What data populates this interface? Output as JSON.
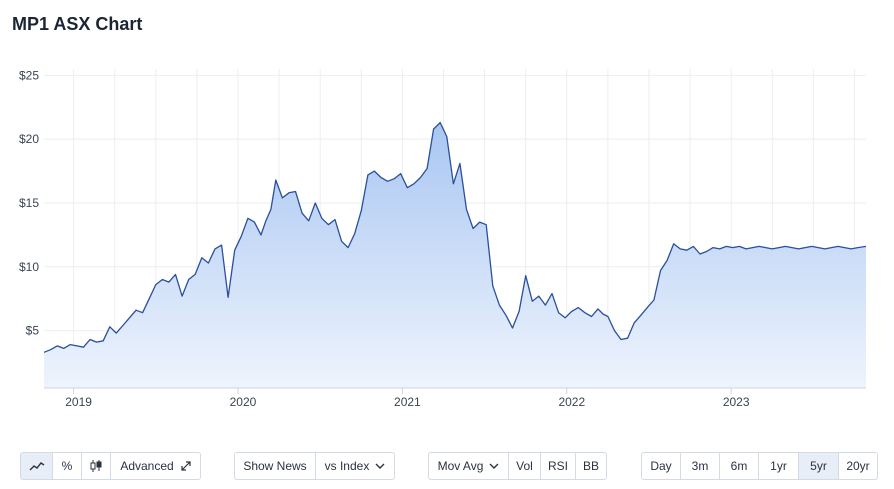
{
  "title": "MP1 ASX Chart",
  "colors": {
    "line": "#2a4f9c",
    "fill_top": "#a9c6f2",
    "fill_bottom": "#eef4fd",
    "grid": "#ebeef2",
    "axis_text": "#3b4452",
    "button_active_bg": "#e8eef7"
  },
  "chart_data": {
    "type": "area",
    "title": "",
    "xlabel": "",
    "ylabel": "",
    "y_tick_labels": [
      "$5",
      "$10",
      "$15",
      "$20",
      "$25"
    ],
    "y_ticks": [
      5,
      10,
      15,
      20,
      25
    ],
    "x_tick_labels": [
      "2019",
      "2020",
      "2021",
      "2022",
      "2023"
    ],
    "x_ticks": [
      2019.0,
      2020.0,
      2021.0,
      2022.0,
      2023.0
    ],
    "xlim": [
      2018.82,
      2023.82
    ],
    "ylim": [
      0.5,
      25.5
    ],
    "grid": true,
    "series": [
      {
        "x": [
          2018.82,
          2018.86,
          2018.9,
          2018.94,
          2018.98,
          2019.02,
          2019.06,
          2019.1,
          2019.14,
          2019.18,
          2019.22,
          2019.26,
          2019.3,
          2019.34,
          2019.38,
          2019.42,
          2019.46,
          2019.5,
          2019.54,
          2019.58,
          2019.62,
          2019.66,
          2019.7,
          2019.74,
          2019.78,
          2019.82,
          2019.86,
          2019.9,
          2019.94,
          2019.98,
          2020.02,
          2020.06,
          2020.1,
          2020.14,
          2020.17,
          2020.2,
          2020.23,
          2020.27,
          2020.31,
          2020.35,
          2020.39,
          2020.43,
          2020.47,
          2020.51,
          2020.55,
          2020.59,
          2020.63,
          2020.67,
          2020.71,
          2020.75,
          2020.79,
          2020.83,
          2020.87,
          2020.91,
          2020.95,
          2020.99,
          2021.03,
          2021.07,
          2021.11,
          2021.15,
          2021.19,
          2021.23,
          2021.27,
          2021.31,
          2021.35,
          2021.39,
          2021.43,
          2021.47,
          2021.51,
          2021.55,
          2021.59,
          2021.63,
          2021.67,
          2021.71,
          2021.75,
          2021.79,
          2021.83,
          2021.87,
          2021.91,
          2021.95,
          2021.99,
          2022.03,
          2022.07,
          2022.11,
          2022.15,
          2022.19,
          2022.22,
          2022.25,
          2022.29,
          2022.33,
          2022.37,
          2022.41,
          2022.45,
          2022.49,
          2022.53,
          2022.57,
          2022.61,
          2022.65,
          2022.69,
          2022.73,
          2022.77,
          2022.81,
          2022.85,
          2022.89,
          2022.93,
          2022.97,
          2023.01,
          2023.05,
          2023.09,
          2023.13,
          2023.17,
          2023.21,
          2023.25,
          2023.29,
          2023.33,
          2023.37,
          2023.41,
          2023.45,
          2023.49,
          2023.53,
          2023.57,
          2023.61,
          2023.65,
          2023.69,
          2023.73,
          2023.77,
          2023.82
        ],
        "y": [
          3.3,
          3.5,
          3.8,
          3.6,
          3.9,
          3.8,
          3.7,
          4.3,
          4.1,
          4.2,
          5.3,
          4.8,
          5.4,
          6.0,
          6.6,
          6.4,
          7.5,
          8.6,
          9.0,
          8.8,
          9.4,
          7.7,
          9.0,
          9.4,
          10.7,
          10.3,
          11.4,
          11.7,
          7.6,
          11.3,
          12.4,
          13.8,
          13.5,
          12.5,
          13.6,
          14.5,
          16.8,
          15.4,
          15.8,
          15.9,
          14.2,
          13.6,
          15.0,
          13.8,
          13.3,
          13.7,
          12.0,
          11.5,
          12.6,
          14.4,
          17.2,
          17.5,
          17.0,
          16.7,
          16.9,
          17.3,
          16.2,
          16.5,
          17.0,
          17.7,
          20.8,
          21.3,
          20.2,
          16.5,
          18.1,
          14.5,
          13.0,
          13.5,
          13.3,
          8.5,
          7.0,
          6.2,
          5.2,
          6.5,
          9.3,
          7.3,
          7.7,
          7.0,
          7.9,
          6.4,
          6.0,
          6.5,
          6.8,
          6.4,
          6.1,
          6.7,
          6.3,
          6.1,
          5.0,
          4.3,
          4.4,
          5.6,
          6.2,
          6.8,
          7.4,
          9.7,
          10.5,
          11.8,
          11.4,
          11.3,
          11.6,
          11.0,
          11.2,
          11.5,
          11.4,
          11.6,
          11.5,
          11.6,
          11.4,
          11.5,
          11.6,
          11.5,
          11.4,
          11.5,
          11.6,
          11.5,
          11.4,
          11.5,
          11.6,
          11.5,
          11.4,
          11.5,
          11.6,
          11.5,
          11.4,
          11.5,
          11.6
        ]
      }
    ]
  },
  "toolbar": {
    "group1": {
      "line_icon": "line-chart-icon",
      "percent_label": "%",
      "candle_icon": "candlestick-icon",
      "advanced_label": "Advanced",
      "expand_icon": "expand-icon"
    },
    "group2": {
      "show_news": "Show News",
      "vs_index": "vs Index"
    },
    "group3": {
      "mov_avg": "Mov Avg",
      "vol": "Vol",
      "rsi": "RSI",
      "bb": "BB"
    },
    "group4": {
      "day": "Day",
      "m3": "3m",
      "m6": "6m",
      "y1": "1yr",
      "y5": "5yr",
      "y20": "20yr"
    }
  }
}
